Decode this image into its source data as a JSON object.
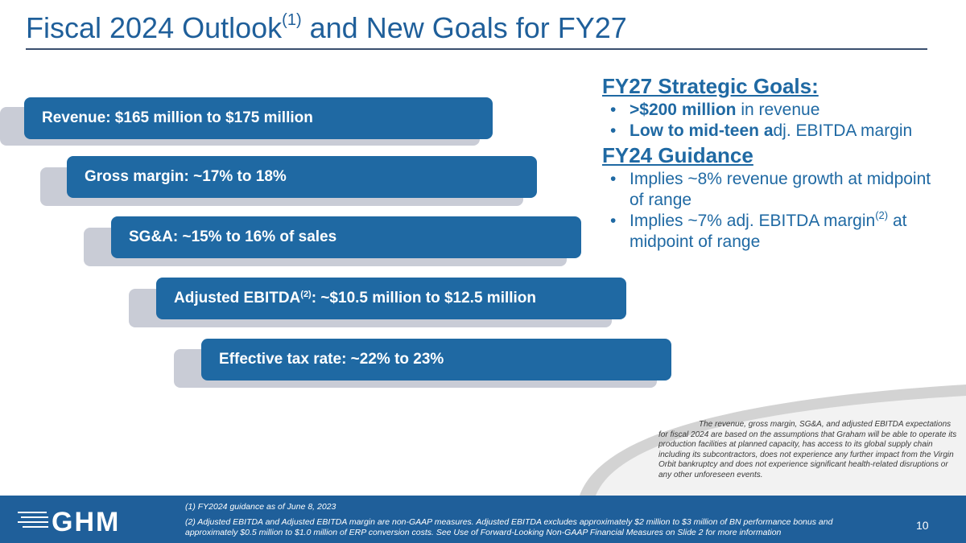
{
  "title": {
    "main": "Fiscal 2024 Outlook",
    "sup": "(1)",
    "rest": " and New Goals for FY27"
  },
  "guidance_bars": {
    "revenue": "Revenue: $165 million to $175 million",
    "gross_margin": "Gross margin: ~17% to 18%",
    "sga": "SG&A: ~15% to 16% of sales",
    "ebitda_label": "Adjusted EBITDA",
    "ebitda_sup": "(2)",
    "ebitda_value": ":  ~$10.5 million to $12.5 million",
    "tax_rate": "Effective tax rate: ~22% to 23%"
  },
  "fy27_goals": {
    "heading": "FY27 Strategic Goals:",
    "item1_bold": ">$200 million",
    "item1_rest": " in revenue",
    "item2_bold": "Low to mid-teen a",
    "item2_rest": "dj. EBITDA margin"
  },
  "fy24_guidance": {
    "heading": "FY24 Guidance",
    "item1": "Implies ~8% revenue growth at midpoint of range",
    "item2_pre": "Implies ~7% adj. EBITDA margin",
    "item2_sup": "(2)",
    "item2_post": " at midpoint of range"
  },
  "disclaimer": "The revenue, gross margin, SG&A, and adjusted EBITDA expectations for fiscal 2024 are based on the assumptions that Graham will be able to operate its production facilities at planned capacity, has access to its global supply chain including its subcontractors, does not experience any further impact from the Virgin Orbit bankruptcy and does not experience significant health-related disruptions or any other unforeseen events.",
  "footer": {
    "logo_text": "GHM",
    "footnote1": "(1)  FY2024 guidance as of June 8, 2023",
    "footnote2": "(2) Adjusted EBITDA and Adjusted EBITDA margin are non-GAAP measures. Adjusted EBITDA excludes approximately $2 million to $3 million of BN performance bonus and approximately $0.5 million to $1.0 million of ERP conversion costs.  See Use of Forward-Looking Non-GAAP Financial Measures on Slide 2 for more information",
    "page_number": "10"
  },
  "colors": {
    "title_blue": "#1f5f9a",
    "bar_blue": "#1f69a3",
    "shadow_gray": "#c9ccd6",
    "footer_blue": "#1f5f9a"
  }
}
